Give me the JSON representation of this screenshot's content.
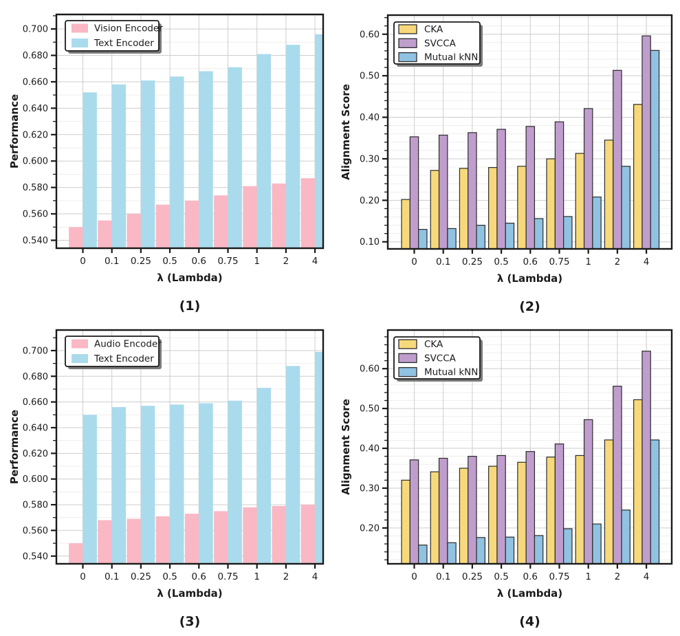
{
  "figure": {
    "background": "#ffffff",
    "text_color": "#1a1a1a",
    "grid_major_color": "#cdcdcd",
    "grid_minor_color": "#eeecea",
    "spine_color": "#1a1a1a",
    "bar_edge_color": "#2b2b2b",
    "legend_shadow_color": "#7a7a7a"
  },
  "chart_data": [
    {
      "type": "bar",
      "caption": "(1)",
      "xlabel": "λ (Lambda)",
      "ylabel": "Performance",
      "categories": [
        "0",
        "0.1",
        "0.25",
        "0.5",
        "0.6",
        "0.75",
        "1",
        "2",
        "4"
      ],
      "series": [
        {
          "name": "Vision Encoder",
          "color": "#f9b8c4",
          "values": [
            0.55,
            0.555,
            0.56,
            0.567,
            0.57,
            0.574,
            0.581,
            0.583,
            0.587
          ]
        },
        {
          "name": "Text Encoder",
          "color": "#a9dbec",
          "values": [
            0.652,
            0.658,
            0.661,
            0.664,
            0.668,
            0.671,
            0.681,
            0.688,
            0.696
          ]
        }
      ],
      "ylim": [
        0.534,
        0.711
      ],
      "yticks": [
        0.54,
        0.56,
        0.58,
        0.6,
        0.62,
        0.64,
        0.66,
        0.68,
        0.7
      ],
      "ytick_decimals": 3,
      "minor_step": 0.01,
      "bar_edge": false,
      "grid": true,
      "legend_position": "upper-left"
    },
    {
      "type": "bar",
      "caption": "(2)",
      "xlabel": "λ (Lambda)",
      "ylabel": "Alignment Score",
      "categories": [
        "0",
        "0.1",
        "0.25",
        "0.5",
        "0.6",
        "0.75",
        "1",
        "2",
        "4"
      ],
      "series": [
        {
          "name": "CKA",
          "color": "#f7d97c",
          "values": [
            0.202,
            0.272,
            0.277,
            0.279,
            0.282,
            0.3,
            0.313,
            0.345,
            0.431
          ]
        },
        {
          "name": "SVCCA",
          "color": "#bf9ecd",
          "values": [
            0.353,
            0.357,
            0.363,
            0.371,
            0.378,
            0.389,
            0.421,
            0.513,
            0.596
          ]
        },
        {
          "name": "Mutual kNN",
          "color": "#90c2e2",
          "values": [
            0.13,
            0.132,
            0.14,
            0.145,
            0.156,
            0.161,
            0.208,
            0.282,
            0.561
          ]
        }
      ],
      "ylim": [
        0.083,
        0.646
      ],
      "yticks": [
        0.1,
        0.2,
        0.3,
        0.4,
        0.5,
        0.6
      ],
      "ytick_decimals": 2,
      "minor_step": 0.02,
      "bar_edge": true,
      "grid": true,
      "legend_position": "upper-left"
    },
    {
      "type": "bar",
      "caption": "(3)",
      "xlabel": "λ (Lambda)",
      "ylabel": "Performance",
      "categories": [
        "0",
        "0.1",
        "0.25",
        "0.5",
        "0.6",
        "0.75",
        "1",
        "2",
        "4"
      ],
      "series": [
        {
          "name": "Audio Encoder",
          "color": "#f9b8c4",
          "values": [
            0.55,
            0.568,
            0.569,
            0.571,
            0.573,
            0.575,
            0.578,
            0.579,
            0.58
          ]
        },
        {
          "name": "Text Encoder",
          "color": "#a9dbec",
          "values": [
            0.65,
            0.656,
            0.657,
            0.658,
            0.659,
            0.661,
            0.671,
            0.688,
            0.699
          ]
        }
      ],
      "ylim": [
        0.534,
        0.716
      ],
      "yticks": [
        0.54,
        0.56,
        0.58,
        0.6,
        0.62,
        0.64,
        0.66,
        0.68,
        0.7
      ],
      "ytick_decimals": 3,
      "minor_step": 0.01,
      "bar_edge": false,
      "grid": true,
      "legend_position": "upper-left"
    },
    {
      "type": "bar",
      "caption": "(4)",
      "xlabel": "λ (Lambda)",
      "ylabel": "Alignment Score",
      "categories": [
        "0",
        "0.1",
        "0.25",
        "0.5",
        "0.6",
        "0.75",
        "1",
        "2",
        "4"
      ],
      "series": [
        {
          "name": "CKA",
          "color": "#f7d97c",
          "values": [
            0.32,
            0.341,
            0.35,
            0.355,
            0.365,
            0.378,
            0.382,
            0.421,
            0.522
          ]
        },
        {
          "name": "SVCCA",
          "color": "#bf9ecd",
          "values": [
            0.371,
            0.375,
            0.38,
            0.382,
            0.392,
            0.411,
            0.472,
            0.556,
            0.644
          ]
        },
        {
          "name": "Mutual kNN",
          "color": "#90c2e2",
          "values": [
            0.157,
            0.163,
            0.176,
            0.177,
            0.181,
            0.198,
            0.21,
            0.245,
            0.421
          ]
        }
      ],
      "ylim": [
        0.11,
        0.697
      ],
      "yticks": [
        0.2,
        0.3,
        0.4,
        0.5,
        0.6
      ],
      "ytick_decimals": 2,
      "minor_step": 0.02,
      "bar_edge": true,
      "grid": true,
      "legend_position": "upper-left"
    }
  ]
}
